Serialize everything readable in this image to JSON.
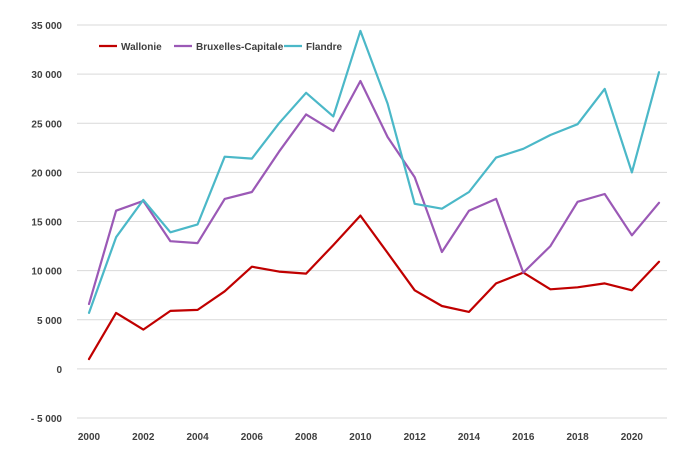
{
  "chart_data": {
    "type": "line",
    "title": "",
    "xlabel": "",
    "ylabel": "",
    "x": [
      2000,
      2001,
      2002,
      2003,
      2004,
      2005,
      2006,
      2007,
      2008,
      2009,
      2010,
      2011,
      2012,
      2013,
      2014,
      2015,
      2016,
      2017,
      2018,
      2019,
      2020,
      2021
    ],
    "x_tick_labels": [
      "2000",
      "2002",
      "2004",
      "2006",
      "2008",
      "2010",
      "2012",
      "2014",
      "2016",
      "2018",
      "2020"
    ],
    "ylim": [
      -5000,
      35000
    ],
    "y_ticks": [
      -5000,
      0,
      5000,
      10000,
      15000,
      20000,
      25000,
      30000,
      35000
    ],
    "y_tick_labels": [
      "- 5 000",
      "0",
      "5 000",
      "10 000",
      "15 000",
      "20 000",
      "25 000",
      "30 000",
      "35 000"
    ],
    "grid": true,
    "legend_position": "top-left",
    "series": [
      {
        "name": "Wallonie",
        "color": "#c00000",
        "values": [
          1000,
          5700,
          4000,
          5900,
          6000,
          7900,
          10400,
          9900,
          9700,
          12600,
          15600,
          11800,
          8000,
          6400,
          5800,
          8700,
          9800,
          8100,
          8300,
          8700,
          8000,
          10900
        ]
      },
      {
        "name": "Bruxelles-Capitale",
        "color": "#9b59b6",
        "values": [
          6600,
          16100,
          17100,
          13000,
          12800,
          17300,
          18000,
          22100,
          25900,
          24200,
          29300,
          23600,
          19500,
          11900,
          16100,
          17300,
          9800,
          12500,
          17000,
          17800,
          13600,
          16900
        ]
      },
      {
        "name": "Flandre",
        "color": "#4bb8c8",
        "values": [
          5700,
          13400,
          17200,
          13900,
          14700,
          21600,
          21400,
          25000,
          28100,
          25700,
          34400,
          27000,
          16800,
          16300,
          18000,
          21500,
          22400,
          23800,
          24900,
          28500,
          20000,
          30200
        ]
      }
    ]
  }
}
